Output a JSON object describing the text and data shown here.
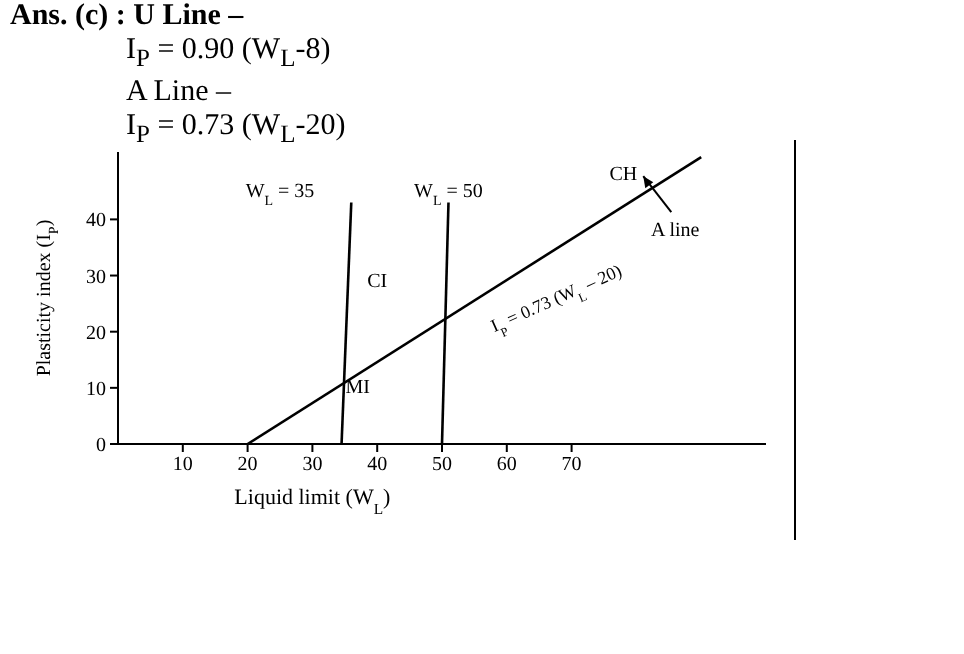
{
  "chart_data": {
    "type": "line",
    "title": "Ans. (c) : U Line  –",
    "subtitle": "I$_{P}$ = 0.90 (W$_{L}$-8)\nA Line  –\nI$_{P}$ = 0.73 (W$_{L}$-20)",
    "xlabel": "Liquid limit (W$_{L}$)",
    "ylabel": "Plasticity index (I$_{P}$)",
    "series": [
      {
        "color": "#000000",
        "x": [
          20,
          90
        ],
        "values": [
          0,
          51.1
        ]
      },
      {
        "color": "#000000",
        "x": [
          34.5,
          36
        ],
        "values": [
          0,
          43
        ]
      },
      {
        "color": "#000000",
        "x": [
          50,
          51
        ],
        "values": [
          0,
          43
        ]
      }
    ],
    "xlim": [
      0,
      100
    ],
    "ylim": [
      0,
      52
    ],
    "xticks": [
      10,
      20,
      30,
      40,
      50,
      60,
      70
    ],
    "yticks": [
      0,
      10,
      20,
      30,
      40
    ],
    "grid": false,
    "marker": "none",
    "line_style": "solid",
    "annotations": [
      "W$_{L}$ = 35",
      "W$_{L}$ = 50",
      "CI",
      "MI",
      "A line",
      "CH",
      "I$_{P}$ = 0.73 (W$_{L}$ – 20)"
    ]
  }
}
